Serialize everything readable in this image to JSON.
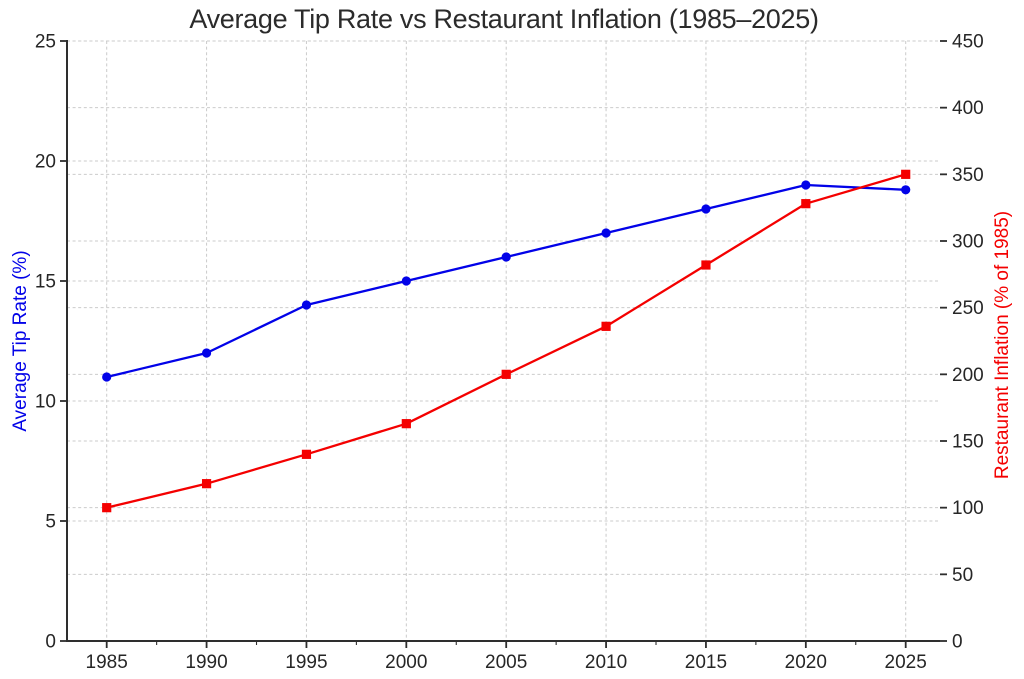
{
  "chart_data": {
    "type": "line",
    "title": "Average Tip Rate vs Restaurant Inflation (1985–2025)",
    "x": [
      1985,
      1990,
      1995,
      2000,
      2005,
      2010,
      2015,
      2020,
      2025
    ],
    "series": [
      {
        "name": "Average Tip Rate (%)",
        "axis": "left",
        "color": "#0202e8",
        "marker": "circle",
        "values": [
          11,
          12,
          14,
          15,
          16,
          17,
          18,
          19,
          18.8
        ]
      },
      {
        "name": "Restaurant Inflation (% of 1985)",
        "axis": "right",
        "color": "#f40000",
        "marker": "square",
        "values": [
          100,
          118,
          140,
          163,
          200,
          236,
          282,
          328,
          350
        ]
      }
    ],
    "left_axis": {
      "label": "Average Tip Rate (%)",
      "lim": [
        0,
        25
      ],
      "ticks": [
        0,
        5,
        10,
        15,
        20,
        25
      ],
      "color": "#0202e8"
    },
    "right_axis": {
      "label": "Restaurant Inflation (% of 1985)",
      "lim": [
        0,
        450
      ],
      "ticks": [
        0,
        50,
        100,
        150,
        200,
        250,
        300,
        350,
        400,
        450
      ],
      "color": "#f40000"
    },
    "x_axis": {
      "ticks": [
        1985,
        1990,
        1995,
        2000,
        2005,
        2010,
        2015,
        2020,
        2025
      ],
      "lim": [
        1983,
        2026.7
      ]
    },
    "grid": true,
    "grid_color": "#cbcbcb",
    "tick_label_color": "#262626",
    "spine_color": "#2e2e2e",
    "legend": "none"
  }
}
